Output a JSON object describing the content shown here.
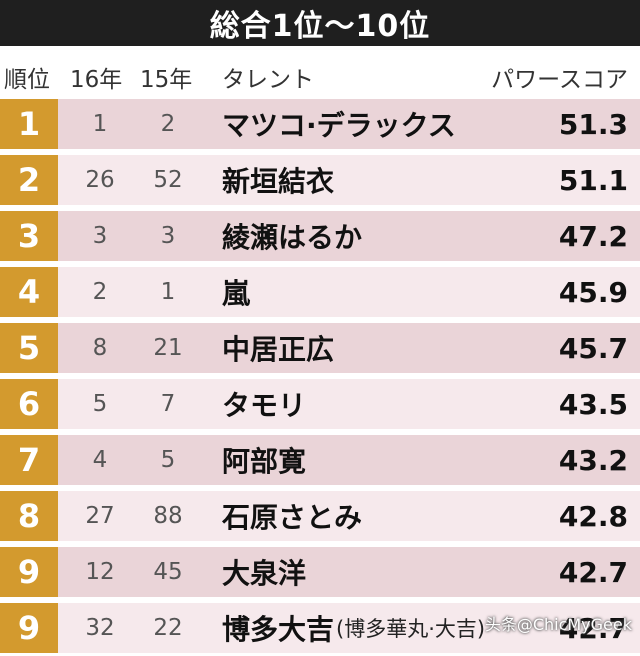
{
  "title": "総合1位～10位",
  "headers": {
    "rank": "順位",
    "y16": "16年",
    "y15": "15年",
    "talent": "タレント",
    "score": "パワースコア"
  },
  "rows": [
    {
      "rank": "1",
      "y16": "1",
      "y15": "2",
      "name": "マツコ·デラックス",
      "note": "",
      "score": "51.3"
    },
    {
      "rank": "2",
      "y16": "26",
      "y15": "52",
      "name": "新垣結衣",
      "note": "",
      "score": "51.1"
    },
    {
      "rank": "3",
      "y16": "3",
      "y15": "3",
      "name": "綾瀬はるか",
      "note": "",
      "score": "47.2"
    },
    {
      "rank": "4",
      "y16": "2",
      "y15": "1",
      "name": "嵐",
      "note": "",
      "score": "45.9"
    },
    {
      "rank": "5",
      "y16": "8",
      "y15": "21",
      "name": "中居正広",
      "note": "",
      "score": "45.7"
    },
    {
      "rank": "6",
      "y16": "5",
      "y15": "7",
      "name": "タモリ",
      "note": "",
      "score": "43.5"
    },
    {
      "rank": "7",
      "y16": "4",
      "y15": "5",
      "name": "阿部寛",
      "note": "",
      "score": "43.2"
    },
    {
      "rank": "8",
      "y16": "27",
      "y15": "88",
      "name": "石原さとみ",
      "note": "",
      "score": "42.8"
    },
    {
      "rank": "9",
      "y16": "12",
      "y15": "45",
      "name": "大泉洋",
      "note": "",
      "score": "42.7"
    },
    {
      "rank": "9",
      "y16": "32",
      "y15": "22",
      "name": "博多大吉",
      "note": "(博多華丸·大吉)",
      "score": "42.7"
    }
  ],
  "watermark": "头条@ChicMyGeek"
}
